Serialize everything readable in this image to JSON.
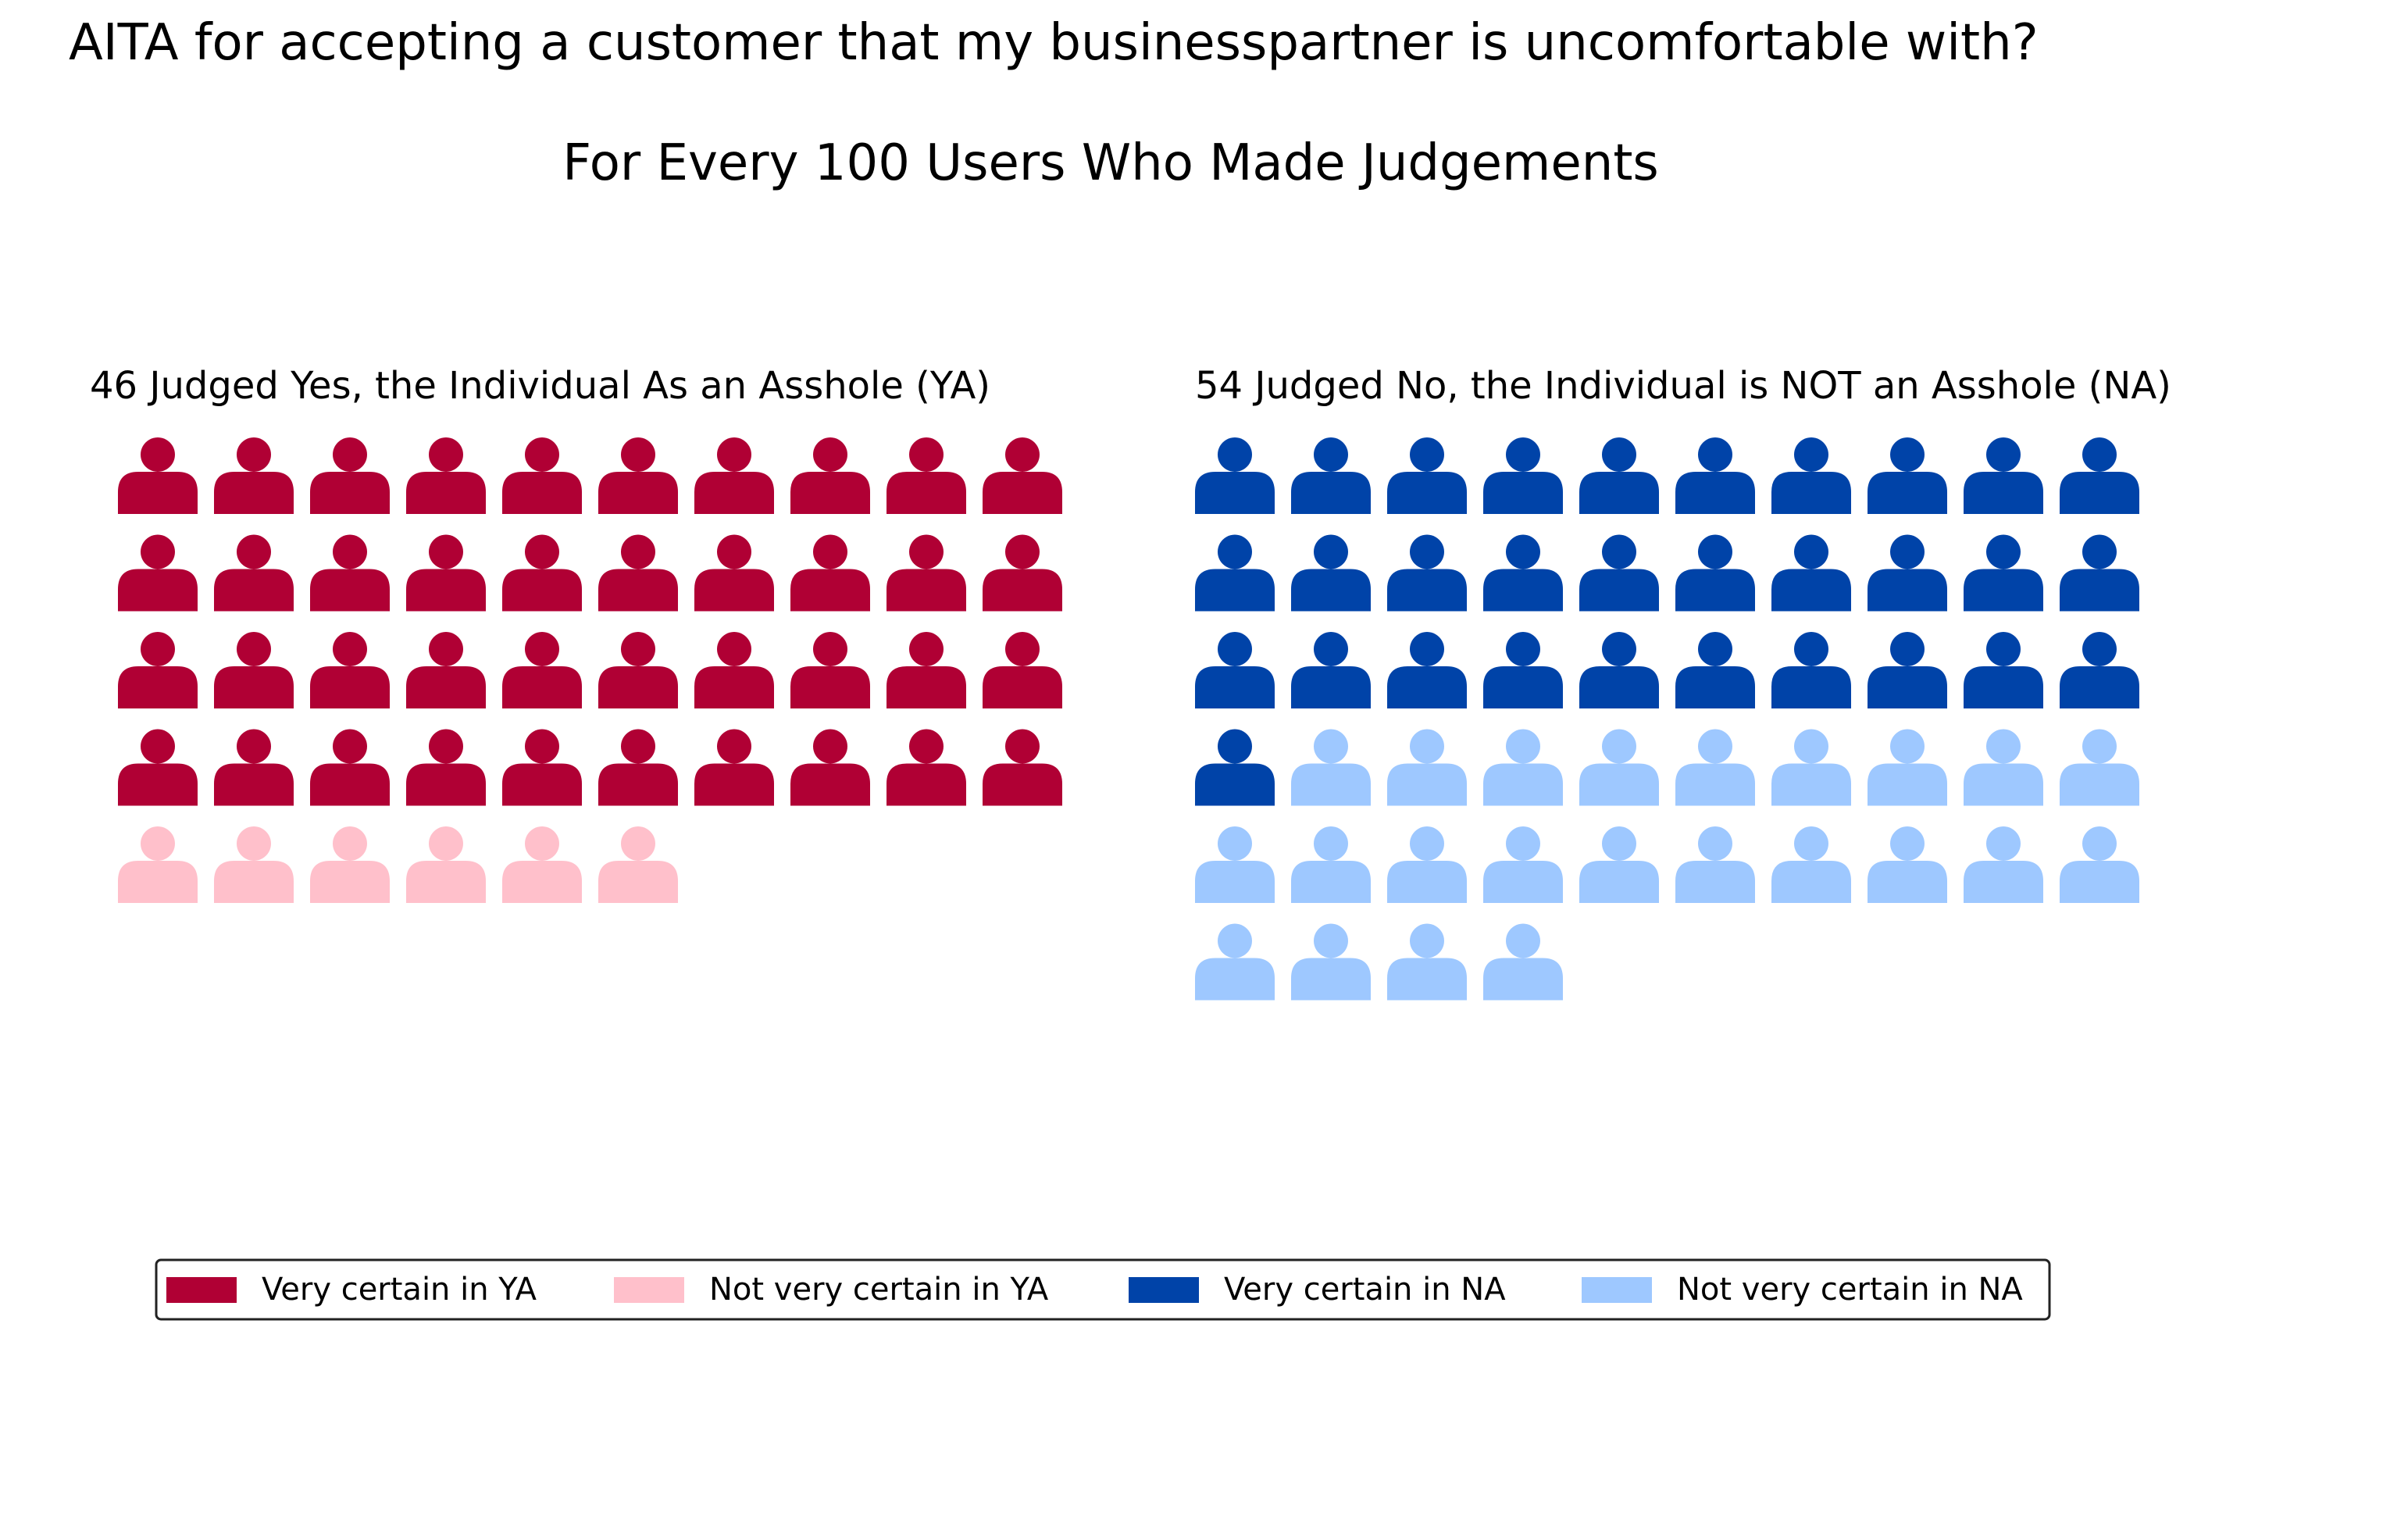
{
  "chart_data": {
    "type": "waffle",
    "title": "AITA for accepting a customer that my businesspartner is uncomfortable with?",
    "subtitle": "For Every 100 Users Who Made Judgements",
    "panels": [
      {
        "label": "46 Judged Yes, the Individual As an Asshole (YA)",
        "total": 46,
        "segments": [
          {
            "name": "Very certain in YA",
            "count": 40,
            "color": "#b00034"
          },
          {
            "name": "Not very certain in YA",
            "count": 6,
            "color": "#ffc0cb"
          }
        ]
      },
      {
        "label": "54 Judged No, the Individual is NOT an Asshole (NA)",
        "total": 54,
        "segments": [
          {
            "name": "Very certain in NA",
            "count": 31,
            "color": "#0043a8"
          },
          {
            "name": "Not very certain in NA",
            "count": 23,
            "color": "#9ec8ff"
          }
        ]
      }
    ],
    "grid_columns": 10,
    "icon": "person-icon",
    "legend": {
      "placement": "bottom",
      "entries": [
        {
          "name": "Very certain in YA",
          "color": "#b00034"
        },
        {
          "name": "Not very certain in YA",
          "color": "#ffc0cb"
        },
        {
          "name": "Very certain in NA",
          "color": "#0043a8"
        },
        {
          "name": "Not very certain in NA",
          "color": "#9ec8ff"
        }
      ]
    }
  }
}
